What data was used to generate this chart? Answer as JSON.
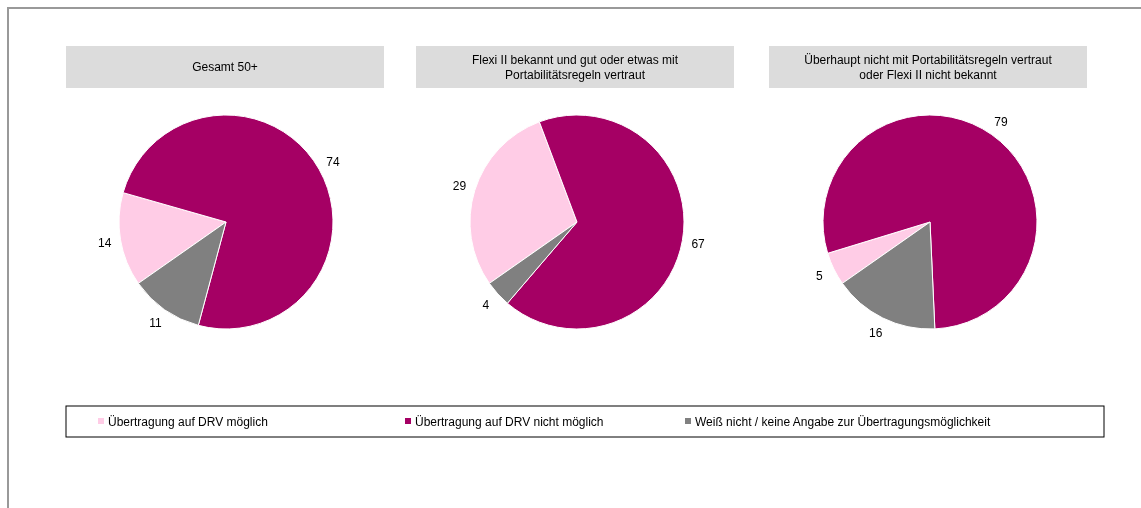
{
  "chart_data": [
    {
      "type": "pie",
      "title": "Gesamt 50+",
      "categories": [
        "Übertragung auf DRV möglich",
        "Übertragung auf DRV nicht möglich",
        "Weiß nicht / keine Angabe zur Übertragungsmöglichkeit"
      ],
      "values": [
        14,
        74,
        11
      ],
      "colors": [
        "#ffcce6",
        "#a50064",
        "#808080"
      ],
      "data_labels": true,
      "legend": "bottom"
    },
    {
      "type": "pie",
      "title": "Flexi II bekannt und gut oder etwas mit Portabilitätsregeln vertraut",
      "categories": [
        null,
        null,
        null
      ],
      "values": [
        29,
        67,
        4
      ],
      "colors": [
        "#ffcce6",
        "#a50064",
        "#808080"
      ],
      "data_labels": true
    },
    {
      "type": "pie",
      "title": "Überhaupt nicht mit Portabilitätsregeln vertraut oder Flexi II nicht bekannt",
      "categories": [
        null,
        null,
        null
      ],
      "values": [
        5,
        79,
        16
      ],
      "colors": [
        "#ffcce6",
        "#a50064",
        "#808080"
      ],
      "data_labels": true
    }
  ]
}
